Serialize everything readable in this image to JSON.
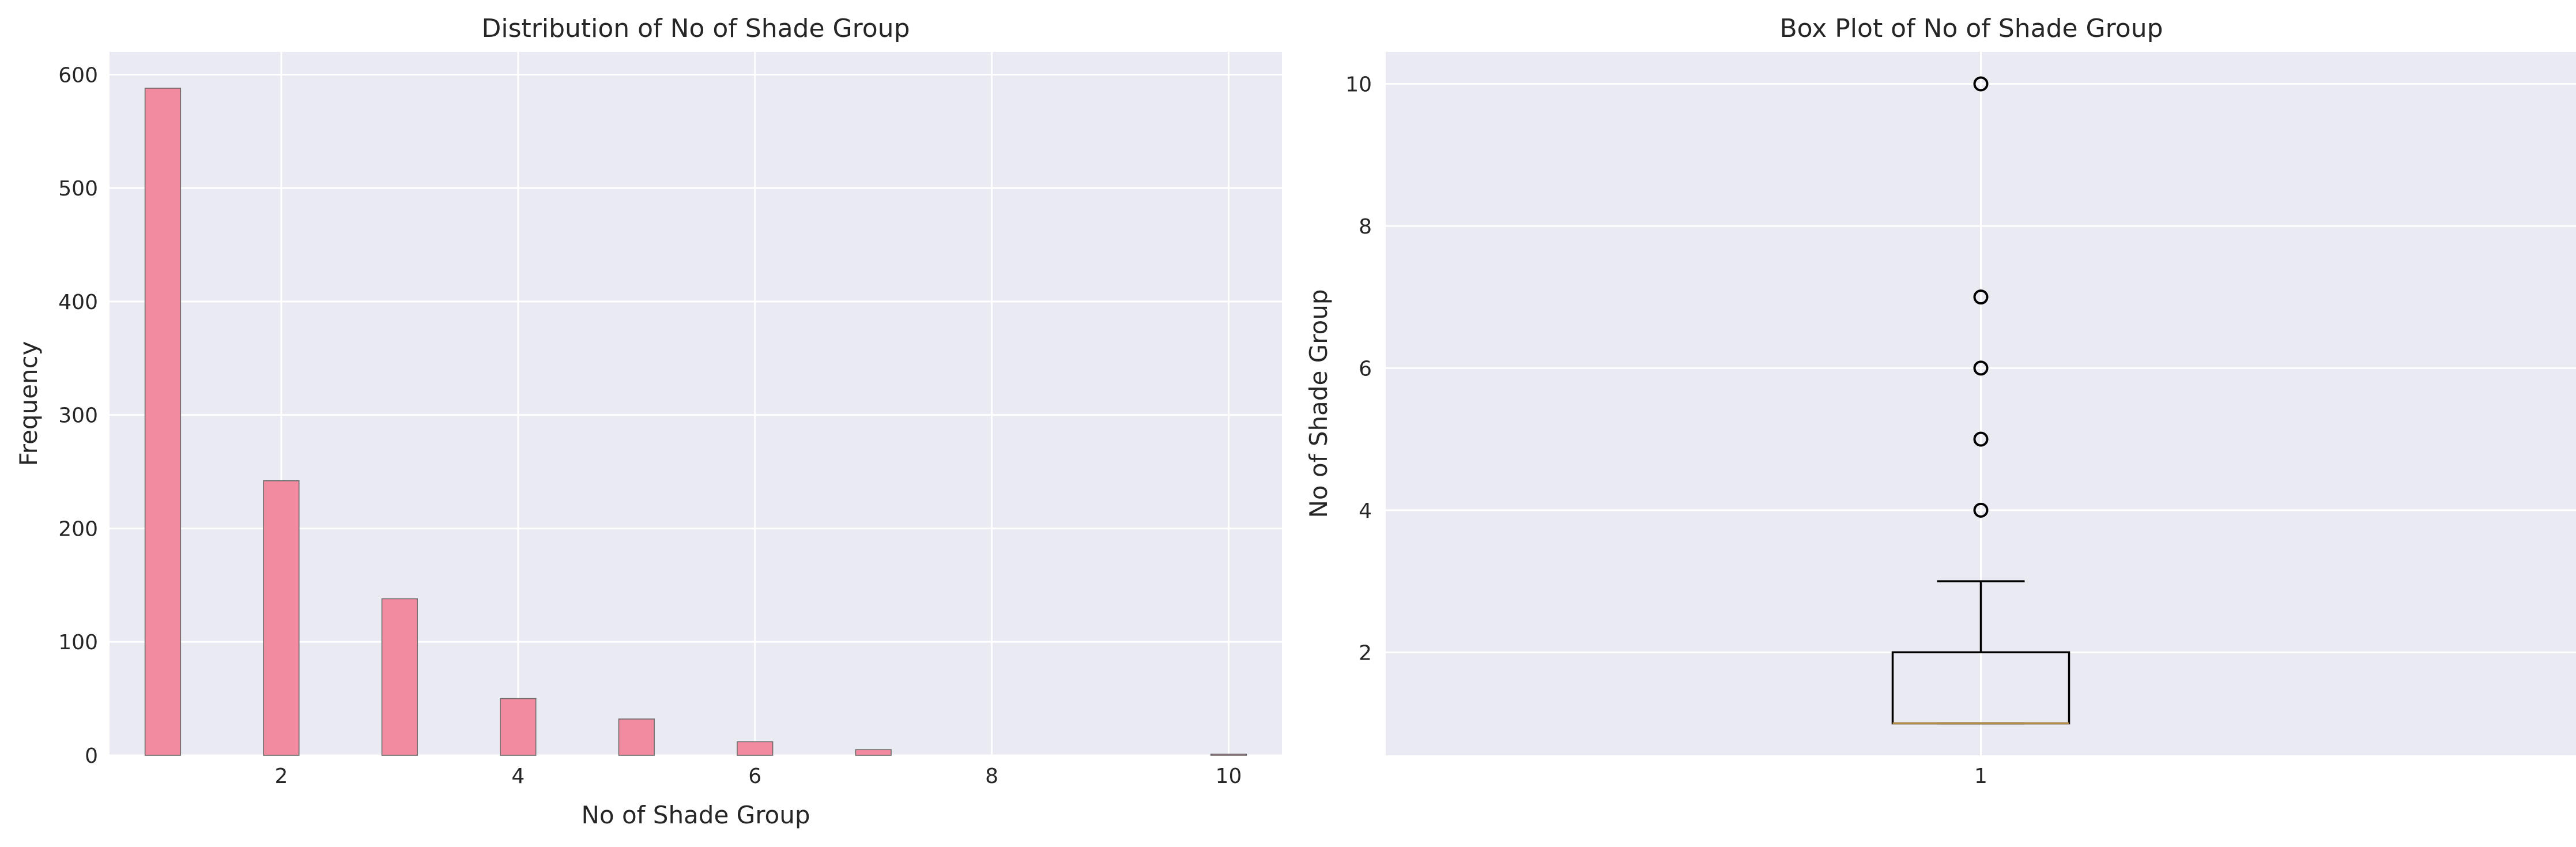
{
  "chart_data": [
    {
      "type": "bar",
      "title": "Distribution of No of Shade Group",
      "xlabel": "No of Shade Group",
      "ylabel": "Frequency",
      "xlim": [
        0.55,
        10.45
      ],
      "ylim": [
        0,
        620
      ],
      "xticks": [
        2,
        4,
        6,
        8,
        10
      ],
      "yticks": [
        0,
        100,
        200,
        300,
        400,
        500,
        600
      ],
      "bin_width": 0.3,
      "bins": [
        {
          "x": 1,
          "count": 588
        },
        {
          "x": 2,
          "count": 242
        },
        {
          "x": 3,
          "count": 138
        },
        {
          "x": 4,
          "count": 50
        },
        {
          "x": 5,
          "count": 32
        },
        {
          "x": 6,
          "count": 12
        },
        {
          "x": 7,
          "count": 5
        },
        {
          "x": 10,
          "count": 1
        }
      ],
      "bar_color": "#f28ba0",
      "grid": true
    },
    {
      "type": "box",
      "title": "Box Plot of No of Shade Group",
      "xlabel": "",
      "ylabel": "No of Shade Group",
      "categories": [
        "1"
      ],
      "ylim": [
        0.55,
        10.45
      ],
      "yticks": [
        2,
        4,
        6,
        8,
        10
      ],
      "box": {
        "q1": 1,
        "median": 1,
        "q3": 2,
        "whisker_low": 1,
        "whisker_high": 3
      },
      "outliers": [
        4,
        5,
        6,
        7,
        10
      ],
      "median_color": "#b38f4a",
      "grid": true
    }
  ]
}
